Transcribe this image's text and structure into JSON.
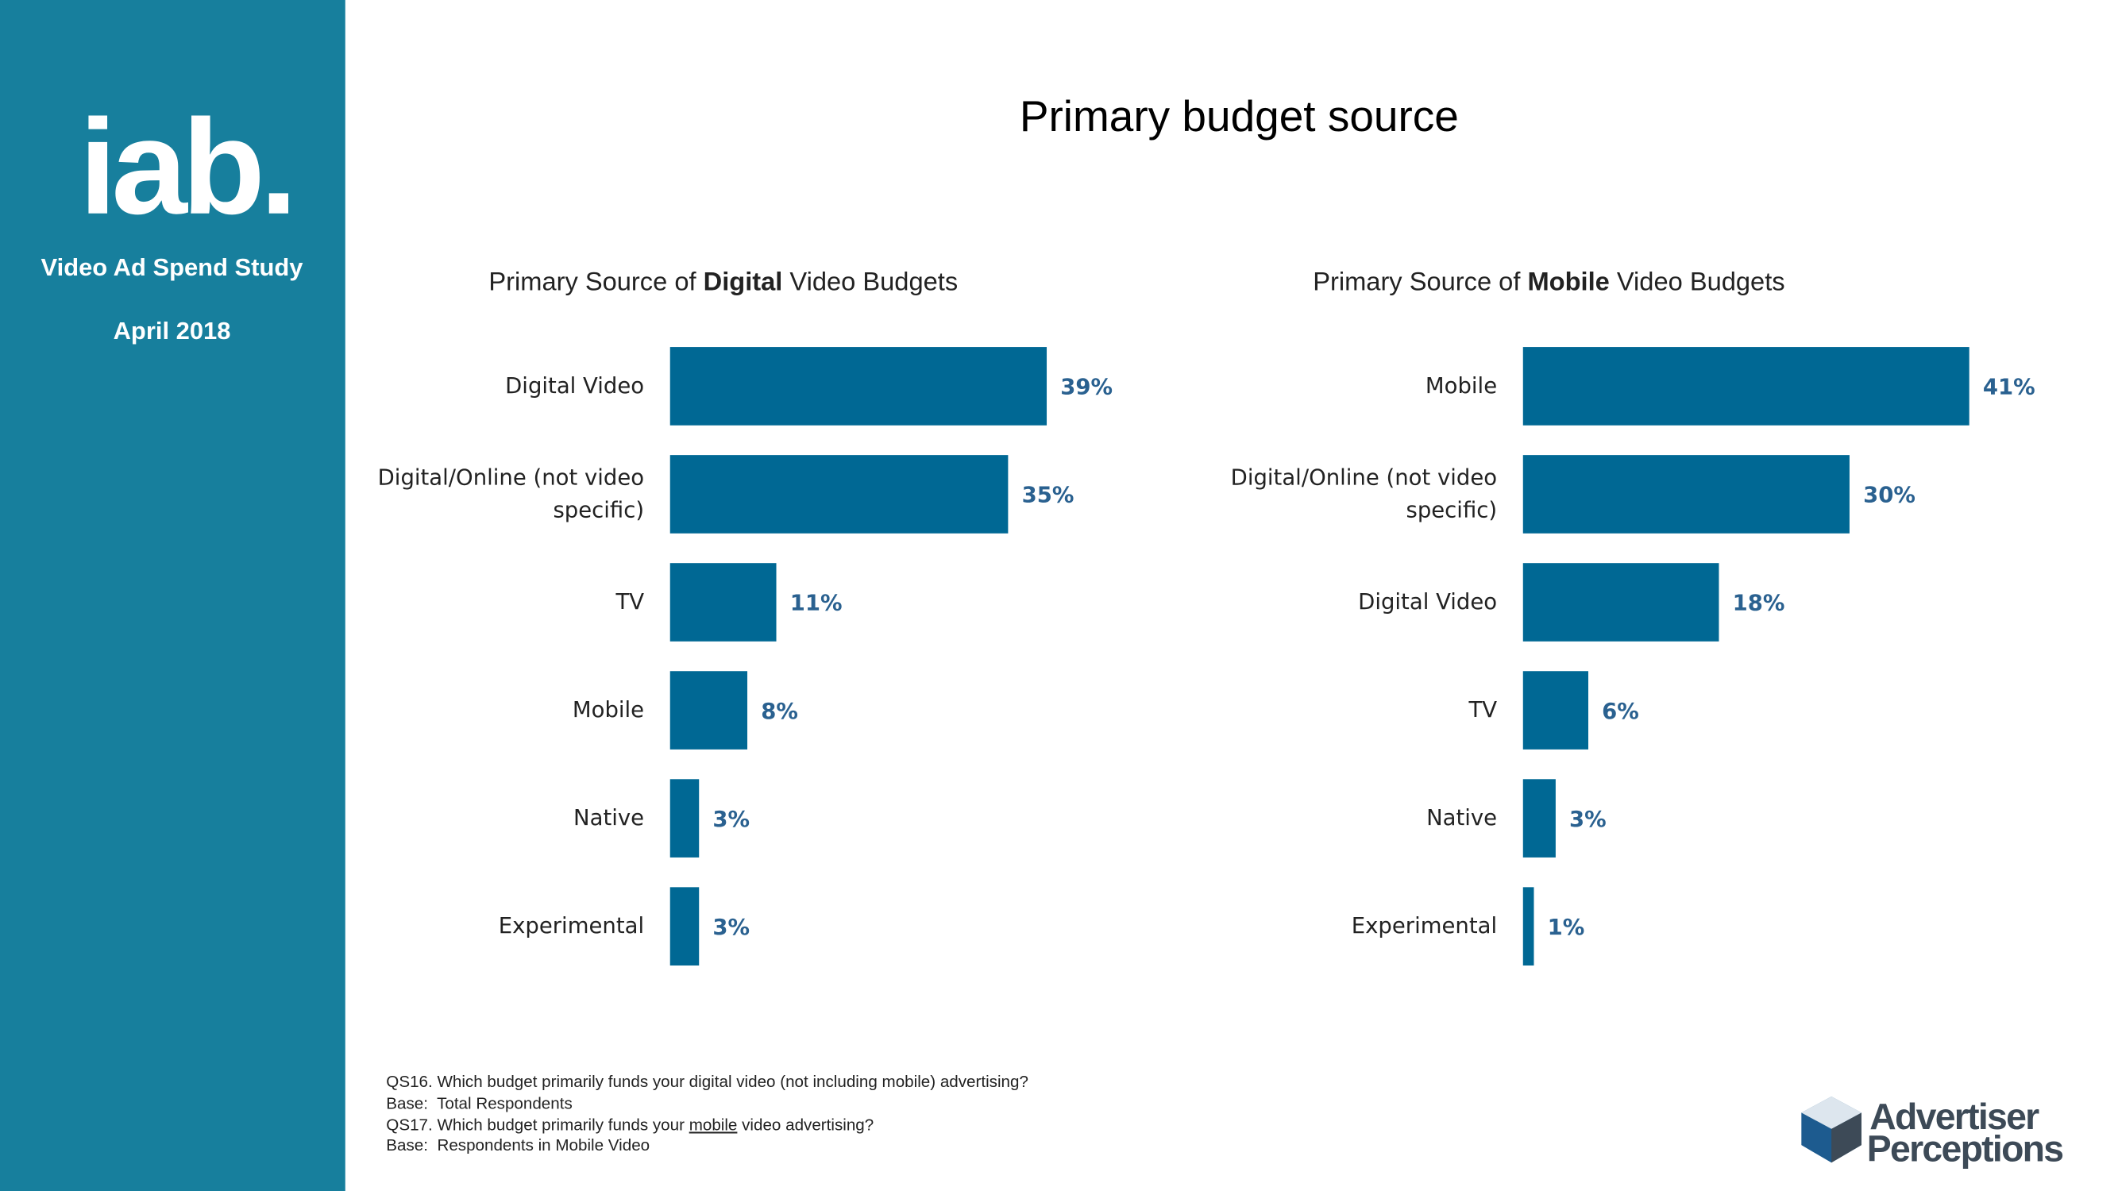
{
  "sidebar": {
    "logo": "iab.",
    "study": "Video Ad Spend Study",
    "date": "April 2018"
  },
  "title": "Primary budget source",
  "chart_data": [
    {
      "type": "bar",
      "orientation": "horizontal",
      "title_parts": [
        "Primary Source of ",
        "Digital",
        " Video Budgets"
      ],
      "categories": [
        "Digital Video",
        "Digital/Online (not video specific)",
        "TV",
        "Mobile",
        "Native",
        "Experimental"
      ],
      "values": [
        39,
        35,
        11,
        8,
        3,
        3
      ],
      "value_labels": [
        "39%",
        "35%",
        "11%",
        "8%",
        "3%",
        "3%"
      ],
      "color": "#006894"
    },
    {
      "type": "bar",
      "orientation": "horizontal",
      "title_parts": [
        "Primary Source of ",
        "Mobile",
        " Video Budgets"
      ],
      "categories": [
        "Mobile",
        "Digital/Online (not video specific)",
        "Digital Video",
        "TV",
        "Native",
        "Experimental"
      ],
      "values": [
        41,
        30,
        18,
        6,
        3,
        1
      ],
      "value_labels": [
        "41%",
        "30%",
        "18%",
        "6%",
        "3%",
        "1%"
      ],
      "color": "#006894"
    }
  ],
  "footnotes": [
    [
      "QS16. Which budget primarily funds your digital video (not including mobile) advertising?"
    ],
    [
      "Base:  Total Respondents"
    ],
    [
      "QS17. Which budget primarily funds your ",
      "mobile",
      " video advertising?"
    ],
    [
      "Base:  Respondents in Mobile Video"
    ]
  ],
  "brand": [
    "Advertiser",
    "Perceptions"
  ]
}
